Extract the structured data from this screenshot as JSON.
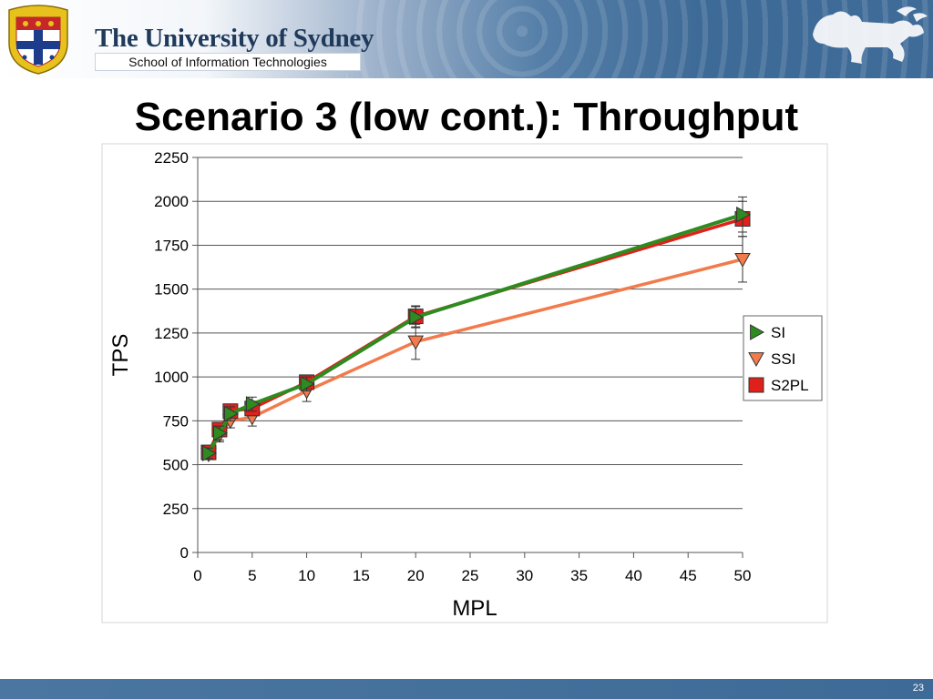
{
  "header": {
    "university": "The University of Sydney",
    "school": "School of Information Technologies"
  },
  "slide": {
    "title": "Scenario 3 (low cont.): Throughput",
    "page_number": "23"
  },
  "colors": {
    "header_blue": "#3e6a97",
    "SI": "#2e8b1f",
    "SSI": "#f27b4c",
    "S2PL": "#e0201b"
  },
  "chart_data": {
    "type": "line",
    "title": "",
    "xlabel": "MPL",
    "ylabel": "TPS",
    "x": [
      1,
      2,
      3,
      5,
      10,
      20,
      50
    ],
    "xlim": [
      0,
      50
    ],
    "ylim": [
      0,
      2250
    ],
    "x_ticks": [
      0,
      5,
      10,
      15,
      20,
      25,
      30,
      35,
      40,
      45,
      50
    ],
    "y_ticks": [
      0,
      250,
      500,
      750,
      1000,
      1250,
      1500,
      1750,
      2000,
      2250
    ],
    "grid": "horizontal",
    "legend_position": "right",
    "series": [
      {
        "name": "SI",
        "marker": "triangle-right",
        "color": "#2e8b1f",
        "values": [
          565,
          680,
          790,
          845,
          960,
          1340,
          1925
        ],
        "error": [
          30,
          40,
          40,
          40,
          40,
          60,
          100
        ]
      },
      {
        "name": "SSI",
        "marker": "triangle-down",
        "color": "#f27b4c",
        "values": [
          560,
          670,
          750,
          770,
          920,
          1200,
          1670
        ],
        "error": [
          30,
          40,
          40,
          50,
          60,
          100,
          130
        ]
      },
      {
        "name": "S2PL",
        "marker": "square",
        "color": "#e0201b",
        "values": [
          570,
          700,
          805,
          820,
          970,
          1345,
          1900
        ],
        "error": [
          30,
          40,
          40,
          40,
          40,
          60,
          100
        ]
      }
    ]
  }
}
